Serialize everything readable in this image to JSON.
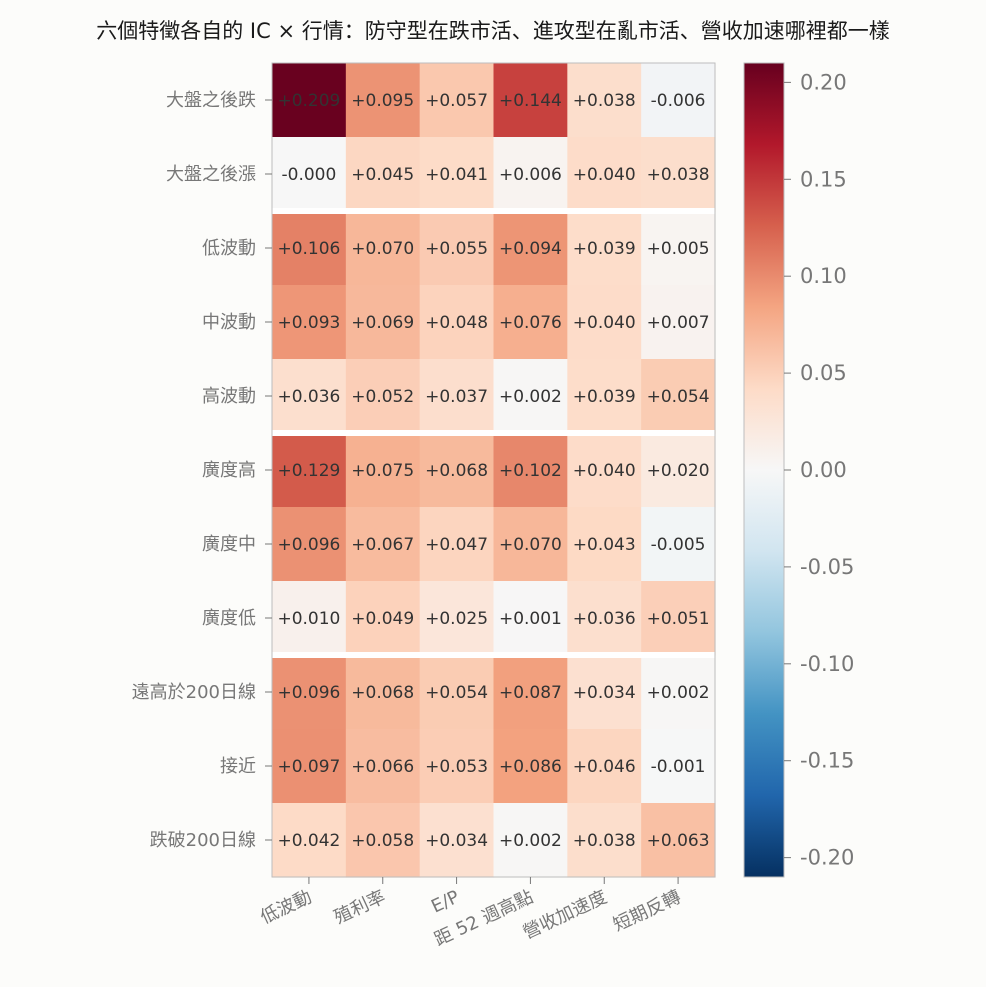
{
  "chart_data": {
    "type": "heatmap",
    "title": "六個特徵各自的 IC × 行情：防守型在跌市活、進攻型在亂市活、營收加速哪裡都一樣",
    "columns": [
      "低波動",
      "殖利率",
      "E/P",
      "距 52 週高點",
      "營收加速度",
      "短期反轉"
    ],
    "rows": [
      "大盤之後跌",
      "大盤之後漲",
      "低波動",
      "中波動",
      "高波動",
      "廣度高",
      "廣度中",
      "廣度低",
      "遠高於200日線",
      "接近",
      "跌破200日線"
    ],
    "row_groups": [
      [
        0,
        1
      ],
      [
        2,
        3,
        4
      ],
      [
        5,
        6,
        7
      ],
      [
        8,
        9,
        10
      ]
    ],
    "values": [
      [
        0.209,
        0.095,
        0.057,
        0.144,
        0.038,
        -0.006
      ],
      [
        -0.0,
        0.045,
        0.041,
        0.006,
        0.04,
        0.038
      ],
      [
        0.106,
        0.07,
        0.055,
        0.094,
        0.039,
        0.005
      ],
      [
        0.093,
        0.069,
        0.048,
        0.076,
        0.04,
        0.007
      ],
      [
        0.036,
        0.052,
        0.037,
        0.002,
        0.039,
        0.054
      ],
      [
        0.129,
        0.075,
        0.068,
        0.102,
        0.04,
        0.02
      ],
      [
        0.096,
        0.067,
        0.047,
        0.07,
        0.043,
        -0.005
      ],
      [
        0.01,
        0.049,
        0.025,
        0.001,
        0.036,
        0.051
      ],
      [
        0.096,
        0.068,
        0.054,
        0.087,
        0.034,
        0.002
      ],
      [
        0.097,
        0.066,
        0.053,
        0.086,
        0.046,
        -0.001
      ],
      [
        0.042,
        0.058,
        0.034,
        0.002,
        0.038,
        0.063
      ]
    ],
    "labels": [
      [
        "+0.209",
        "+0.095",
        "+0.057",
        "+0.144",
        "+0.038",
        "-0.006"
      ],
      [
        "-0.000",
        "+0.045",
        "+0.041",
        "+0.006",
        "+0.040",
        "+0.038"
      ],
      [
        "+0.106",
        "+0.070",
        "+0.055",
        "+0.094",
        "+0.039",
        "+0.005"
      ],
      [
        "+0.093",
        "+0.069",
        "+0.048",
        "+0.076",
        "+0.040",
        "+0.007"
      ],
      [
        "+0.036",
        "+0.052",
        "+0.037",
        "+0.002",
        "+0.039",
        "+0.054"
      ],
      [
        "+0.129",
        "+0.075",
        "+0.068",
        "+0.102",
        "+0.040",
        "+0.020"
      ],
      [
        "+0.096",
        "+0.067",
        "+0.047",
        "+0.070",
        "+0.043",
        "-0.005"
      ],
      [
        "+0.010",
        "+0.049",
        "+0.025",
        "+0.001",
        "+0.036",
        "+0.051"
      ],
      [
        "+0.096",
        "+0.068",
        "+0.054",
        "+0.087",
        "+0.034",
        "+0.002"
      ],
      [
        "+0.097",
        "+0.066",
        "+0.053",
        "+0.086",
        "+0.046",
        "-0.001"
      ],
      [
        "+0.042",
        "+0.058",
        "+0.034",
        "+0.002",
        "+0.038",
        "+0.063"
      ]
    ],
    "colormap": "RdBu_r",
    "vmin": -0.21,
    "vmax": 0.21,
    "colorbar_ticks": [
      0.2,
      0.15,
      0.1,
      0.05,
      0.0,
      -0.05,
      -0.1,
      -0.15,
      -0.2
    ],
    "colorbar_tick_labels": [
      "0.20",
      "0.15",
      "0.10",
      "0.05",
      "0.00",
      "-0.05",
      "-0.10",
      "-0.15",
      "-0.20"
    ],
    "grid": false,
    "legend": "colorbar-right"
  }
}
